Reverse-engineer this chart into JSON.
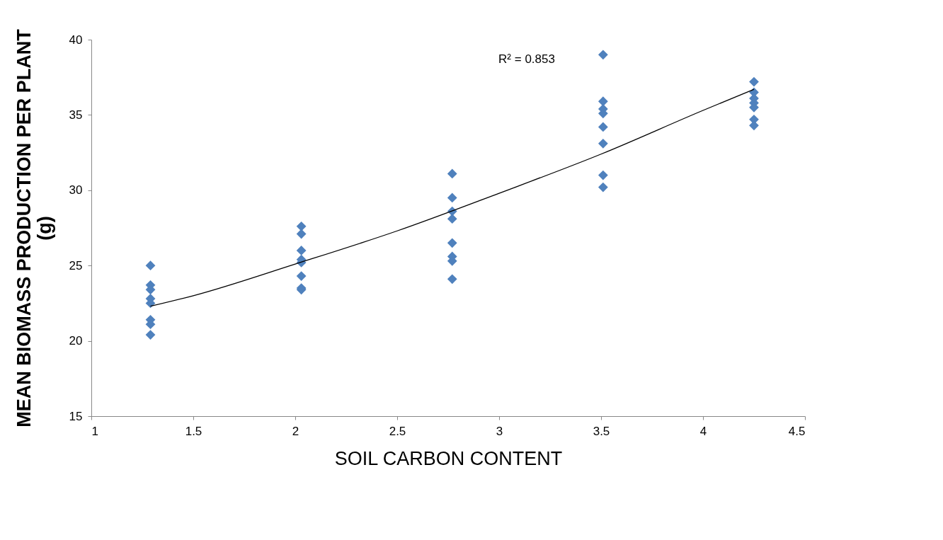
{
  "chart_data": {
    "type": "scatter",
    "xlabel": "SOIL CARBON CONTENT",
    "ylabel": "MEAN BIOMASS PRODUCTION PER PLANT\n(g)",
    "xlim": [
      1,
      4.5
    ],
    "xticks": [
      1,
      1.5,
      2,
      2.5,
      3,
      3.5,
      4,
      4.5
    ],
    "ylim": [
      15,
      40
    ],
    "yticks": [
      15,
      20,
      25,
      30,
      35,
      40
    ],
    "grid": false,
    "annotations": [
      "R² = 0.853"
    ],
    "series": [
      {
        "marker": "diamond",
        "color": "#4f81bd",
        "x": [
          1.29,
          1.29,
          1.29,
          1.29,
          1.29,
          1.29,
          1.29,
          1.29,
          2.03,
          2.03,
          2.03,
          2.03,
          2.03,
          2.03,
          2.03,
          2.03,
          2.77,
          2.77,
          2.77,
          2.77,
          2.77,
          2.77,
          2.77,
          2.77,
          3.51,
          3.51,
          3.51,
          3.51,
          3.51,
          3.51,
          3.51,
          3.51,
          4.25,
          4.25,
          4.25,
          4.25,
          4.25,
          4.25,
          4.25
        ],
        "values": [
          25.0,
          23.7,
          23.4,
          22.8,
          22.5,
          21.4,
          21.1,
          20.4,
          27.6,
          27.1,
          26.0,
          25.4,
          25.2,
          24.3,
          23.5,
          23.4,
          31.1,
          29.5,
          28.6,
          28.1,
          26.5,
          25.6,
          25.3,
          24.1,
          39.0,
          35.9,
          35.4,
          35.1,
          34.2,
          33.1,
          31.0,
          30.2,
          37.2,
          36.5,
          36.1,
          35.8,
          35.5,
          34.7,
          34.3
        ]
      },
      {
        "type": "line",
        "marker": "none",
        "color": "#000000",
        "line_style": "solid",
        "x": [
          1.29,
          1.5,
          2.0,
          2.5,
          3.0,
          3.5,
          4.0,
          4.25
        ],
        "values": [
          22.3,
          23.0,
          25.1,
          27.3,
          29.8,
          32.4,
          35.3,
          36.7
        ]
      }
    ]
  }
}
